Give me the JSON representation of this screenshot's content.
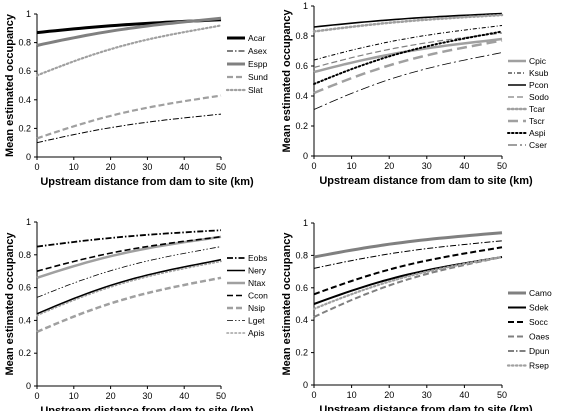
{
  "chart_data": [
    {
      "type": "line",
      "xlabel": "Upstream distance from dam to site (km)",
      "ylabel": "Mean estimated occupancy",
      "xlim": [
        0,
        50
      ],
      "ylim": [
        0,
        1
      ],
      "xticks": [
        "0",
        "10",
        "20",
        "30",
        "40",
        "50"
      ],
      "yticks": [
        "0",
        "0.2",
        "0.4",
        "0.6",
        "0.8",
        "1"
      ],
      "legend": "right",
      "series": [
        {
          "name": "Acar",
          "x": [
            0,
            50
          ],
          "y": [
            0.87,
            0.96
          ],
          "color": "#000000",
          "dash": "solid",
          "width": 3
        },
        {
          "name": "Asex",
          "x": [
            0,
            50
          ],
          "y": [
            0.1,
            0.3
          ],
          "color": "#000000",
          "dash": "dashdot",
          "width": 1
        },
        {
          "name": "Espp",
          "x": [
            0,
            50
          ],
          "y": [
            0.78,
            0.97
          ],
          "color": "#808080",
          "dash": "solid",
          "width": 3
        },
        {
          "name": "Sund",
          "x": [
            0,
            50
          ],
          "y": [
            0.13,
            0.43
          ],
          "color": "#a0a0a0",
          "dash": "dash",
          "width": 2.2
        },
        {
          "name": "Slat",
          "x": [
            0,
            50
          ],
          "y": [
            0.57,
            0.92
          ],
          "color": "#a0a0a0",
          "dash": "dot",
          "width": 2.2
        }
      ]
    },
    {
      "type": "line",
      "xlabel": "Upstream distance from dam to site (km)",
      "ylabel": "Mean estimated occupancy",
      "xlim": [
        0,
        50
      ],
      "ylim": [
        0,
        1
      ],
      "xticks": [
        "0",
        "10",
        "20",
        "30",
        "40",
        "50"
      ],
      "yticks": [
        "0",
        "0.2",
        "0.4",
        "0.6",
        "0.8",
        "1"
      ],
      "legend": "right",
      "series": [
        {
          "name": "Cpic",
          "x": [
            0,
            50
          ],
          "y": [
            0.56,
            0.78
          ],
          "color": "#a0a0a0",
          "dash": "solid",
          "width": 2.5
        },
        {
          "name": "Ksub",
          "x": [
            0,
            50
          ],
          "y": [
            0.64,
            0.87
          ],
          "color": "#000000",
          "dash": "dashdot2",
          "width": 1
        },
        {
          "name": "Pcon",
          "x": [
            0,
            50
          ],
          "y": [
            0.86,
            0.95
          ],
          "color": "#000000",
          "dash": "solid",
          "width": 1.6
        },
        {
          "name": "Sodo",
          "x": [
            0,
            50
          ],
          "y": [
            0.59,
            0.82
          ],
          "color": "#808080",
          "dash": "dash",
          "width": 1.2
        },
        {
          "name": "Tcar",
          "x": [
            0,
            50
          ],
          "y": [
            0.83,
            0.94
          ],
          "color": "#a0a0a0",
          "dash": "dot",
          "width": 2.5
        },
        {
          "name": "Tscr",
          "x": [
            0,
            50
          ],
          "y": [
            0.42,
            0.77
          ],
          "color": "#a0a0a0",
          "dash": "longdash",
          "width": 2.5
        },
        {
          "name": "Aspi",
          "x": [
            0,
            50
          ],
          "y": [
            0.48,
            0.83
          ],
          "color": "#000000",
          "dash": "dot",
          "width": 2
        },
        {
          "name": "Cser",
          "x": [
            0,
            50
          ],
          "y": [
            0.31,
            0.69
          ],
          "color": "#000000",
          "dash": "longdashdot",
          "width": 0.8
        }
      ]
    },
    {
      "type": "line",
      "xlabel": "Upstream distance from dam to site (km)",
      "ylabel": "Mean estimated occupancy",
      "xlim": [
        0,
        50
      ],
      "ylim": [
        0,
        1
      ],
      "xticks": [
        "0",
        "10",
        "20",
        "30",
        "40",
        "50"
      ],
      "yticks": [
        "0",
        "0.2",
        "0.4",
        "0.6",
        "0.8",
        "1"
      ],
      "legend": "right",
      "series": [
        {
          "name": "Eobs",
          "x": [
            0,
            50
          ],
          "y": [
            0.85,
            0.95
          ],
          "color": "#000000",
          "dash": "dashdot",
          "width": 1.8
        },
        {
          "name": "Nery",
          "x": [
            0,
            50
          ],
          "y": [
            0.44,
            0.77
          ],
          "color": "#000000",
          "dash": "solid",
          "width": 1.6
        },
        {
          "name": "Ntax",
          "x": [
            0,
            50
          ],
          "y": [
            0.66,
            0.91
          ],
          "color": "#a0a0a0",
          "dash": "solid",
          "width": 2.5
        },
        {
          "name": "Ccon",
          "x": [
            0,
            50
          ],
          "y": [
            0.7,
            0.91
          ],
          "color": "#000000",
          "dash": "dash",
          "width": 1.6
        },
        {
          "name": "Nsip",
          "x": [
            0,
            50
          ],
          "y": [
            0.33,
            0.66
          ],
          "color": "#a0a0a0",
          "dash": "dash",
          "width": 2.5
        },
        {
          "name": "Lget",
          "x": [
            0,
            50
          ],
          "y": [
            0.54,
            0.85
          ],
          "color": "#000000",
          "dash": "dashdotdot",
          "width": 0.8
        },
        {
          "name": "Apis",
          "x": [
            0,
            50
          ],
          "y": [
            0.43,
            0.76
          ],
          "color": "#a0a0a0",
          "dash": "dot",
          "width": 1.6
        }
      ]
    },
    {
      "type": "line",
      "xlabel": "Upstream distance from dam to site (km)",
      "ylabel": "Mean estimated occupancy",
      "xlim": [
        0,
        50
      ],
      "ylim": [
        0,
        1
      ],
      "xticks": [
        "0",
        "10",
        "20",
        "30",
        "40",
        "50"
      ],
      "yticks": [
        "0",
        "0.2",
        "0.4",
        "0.6",
        "0.8",
        "1"
      ],
      "legend": "right",
      "series": [
        {
          "name": "Camo",
          "x": [
            0,
            50
          ],
          "y": [
            0.79,
            0.94
          ],
          "color": "#808080",
          "dash": "solid",
          "width": 3
        },
        {
          "name": "Sdek",
          "x": [
            0,
            50
          ],
          "y": [
            0.5,
            0.79
          ],
          "color": "#000000",
          "dash": "solid",
          "width": 2
        },
        {
          "name": "Socc",
          "x": [
            0,
            50
          ],
          "y": [
            0.56,
            0.85
          ],
          "color": "#000000",
          "dash": "dash",
          "width": 2
        },
        {
          "name": "Oaes",
          "x": [
            0,
            50
          ],
          "y": [
            0.42,
            0.79
          ],
          "color": "#808080",
          "dash": "dash",
          "width": 2
        },
        {
          "name": "Dpun",
          "x": [
            0,
            50
          ],
          "y": [
            0.72,
            0.89
          ],
          "color": "#000000",
          "dash": "dashdot",
          "width": 1
        },
        {
          "name": "Rsep",
          "x": [
            0,
            50
          ],
          "y": [
            0.47,
            0.79
          ],
          "color": "#a0a0a0",
          "dash": "dot",
          "width": 2.2
        }
      ]
    }
  ]
}
